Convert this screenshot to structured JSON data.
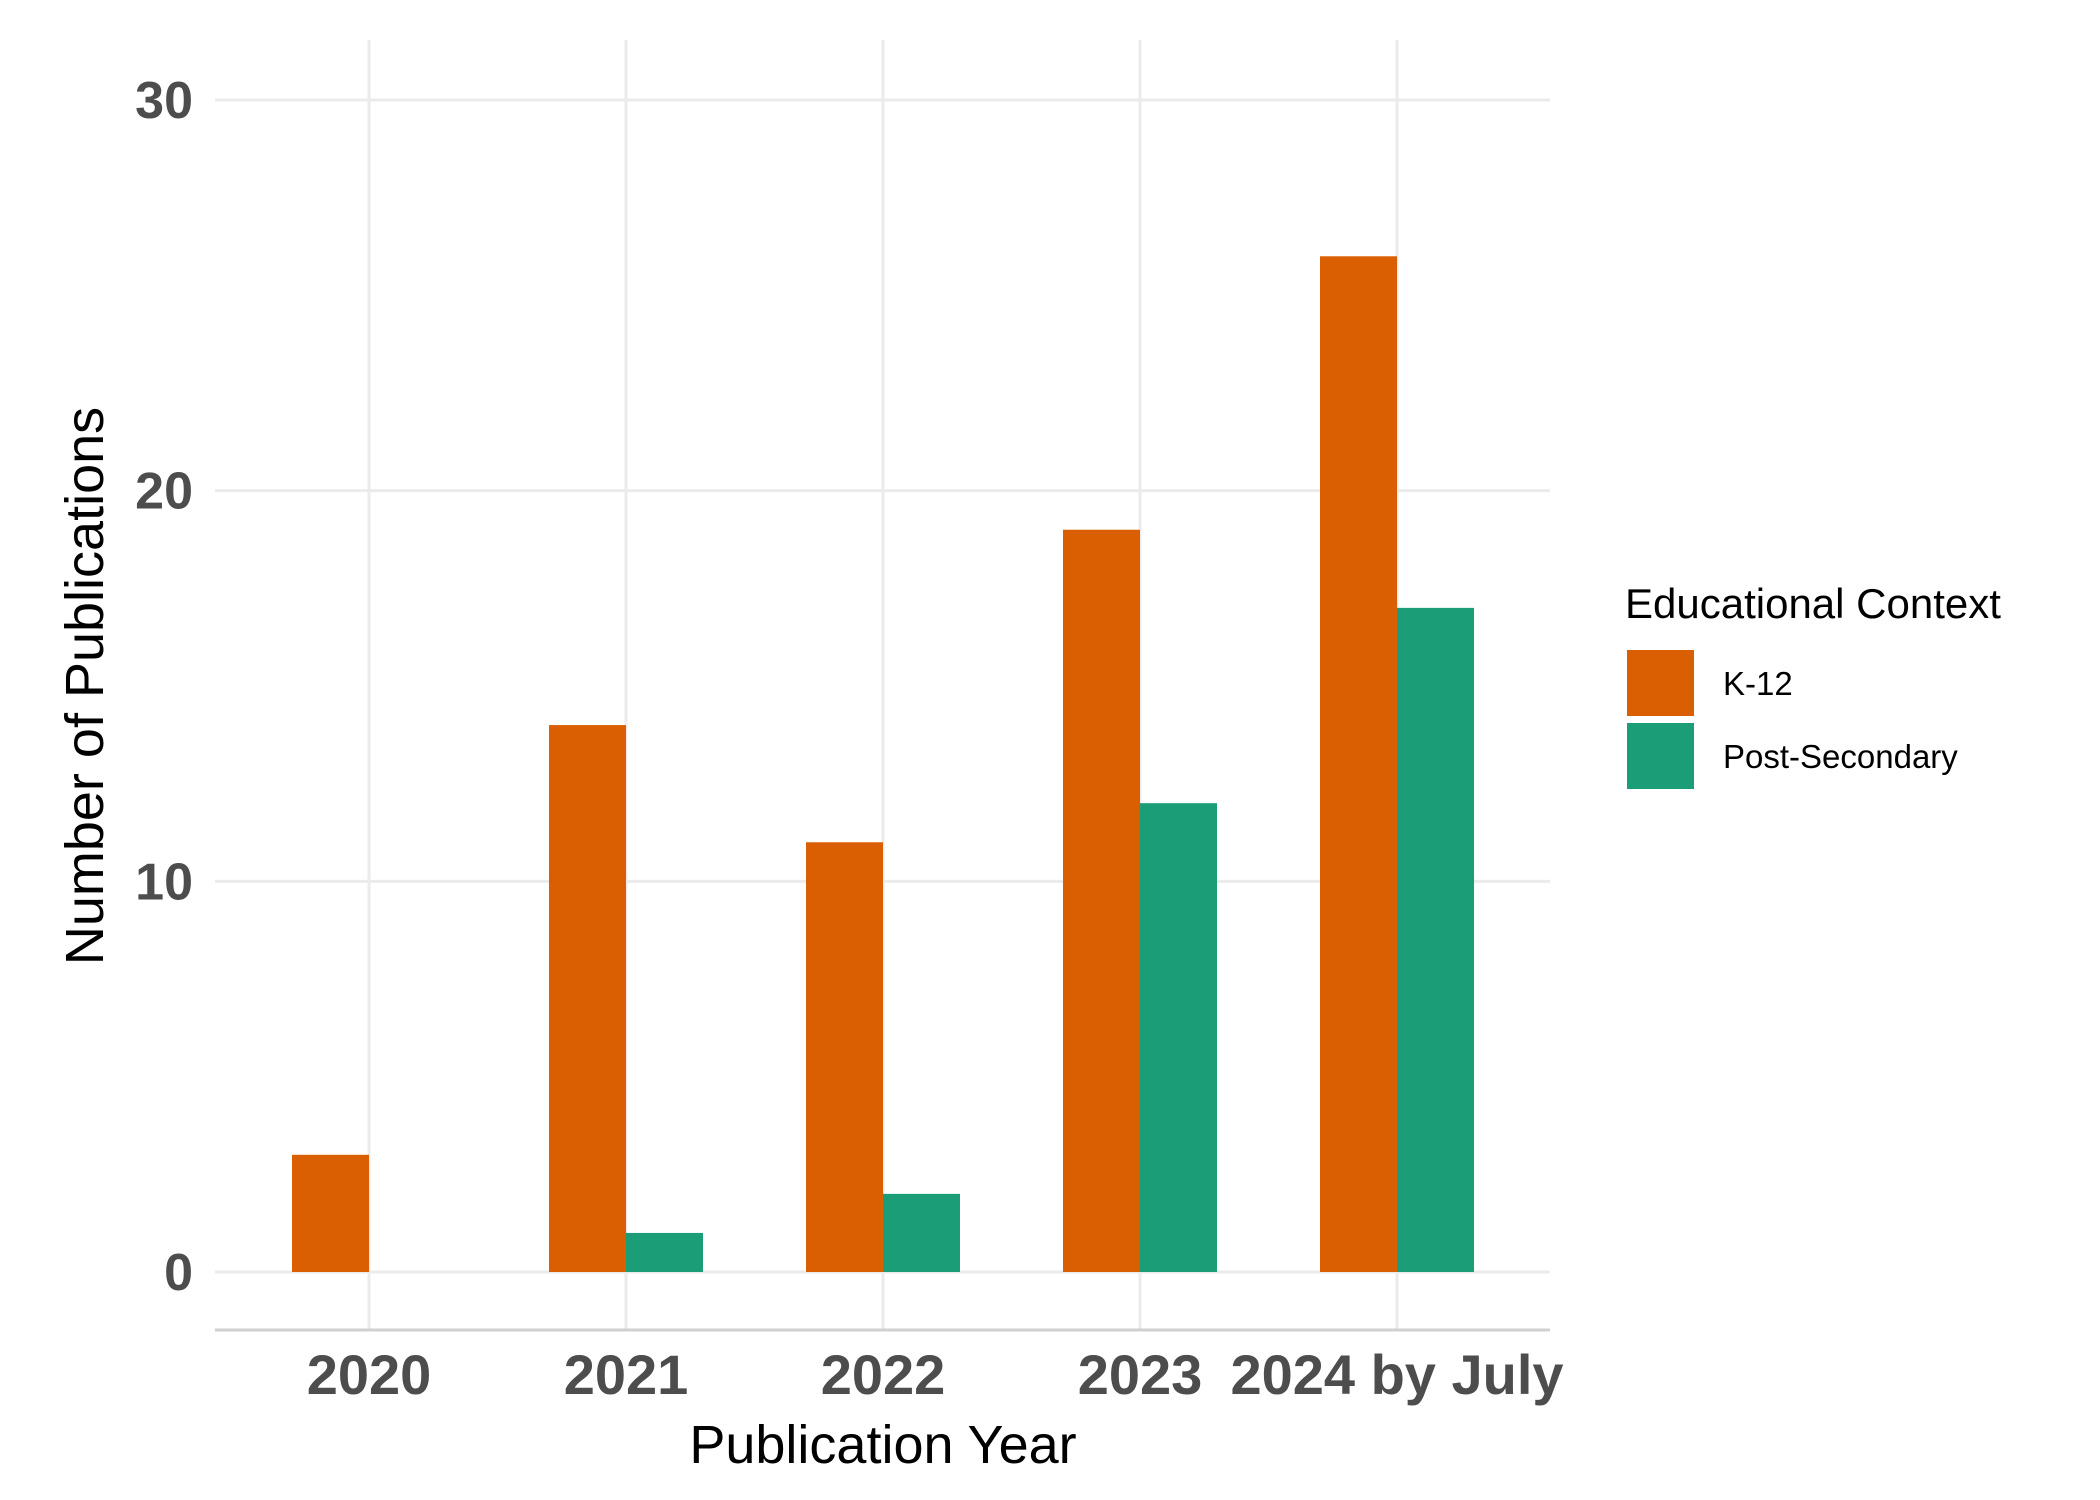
{
  "chart_data": {
    "type": "bar",
    "categories": [
      "2020",
      "2021",
      "2022",
      "2023",
      "2024 by July"
    ],
    "series": [
      {
        "name": "K-12",
        "values": [
          3,
          14,
          11,
          19,
          26
        ],
        "color": "#d95f02"
      },
      {
        "name": "Post-Secondary",
        "values": [
          0,
          1,
          2,
          12,
          17
        ],
        "color": "#1b9e77"
      }
    ],
    "xlabel": "Publication Year",
    "ylabel": "Number of Publications",
    "ylim": [
      -1.5,
      30.5
    ],
    "yticks": [
      0,
      10,
      20,
      30
    ],
    "legend": {
      "title": "Educational Context",
      "position": "right"
    },
    "grid": true
  }
}
